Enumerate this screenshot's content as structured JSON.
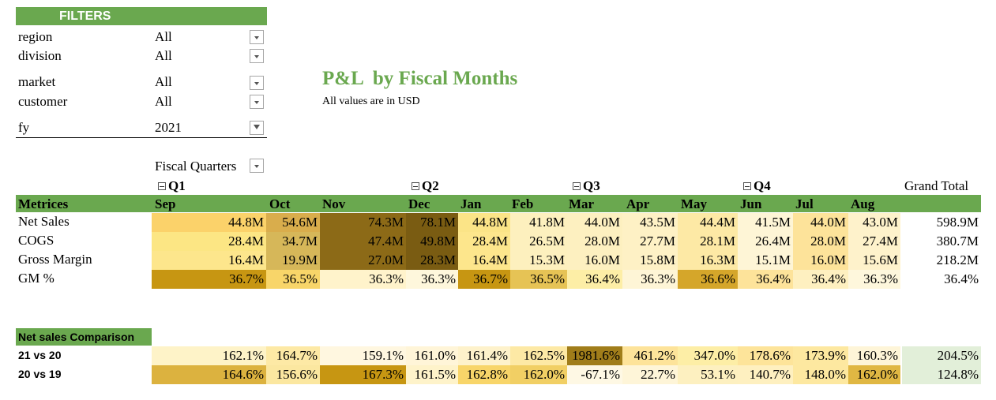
{
  "filters": {
    "header": "FILTERS",
    "items": [
      {
        "label": "region",
        "value": "All"
      },
      {
        "label": "division",
        "value": "All"
      },
      {
        "label": "market",
        "value": "All"
      },
      {
        "label": "customer",
        "value": "All"
      },
      {
        "label": "fy",
        "value": "2021"
      }
    ]
  },
  "report": {
    "title": "P&L  by Fiscal Months",
    "subtitle": "All values are in USD"
  },
  "pivot": {
    "column_field_label": "Fiscal Quarters",
    "quarters": [
      "Q1",
      "Q2",
      "Q3",
      "Q4"
    ],
    "grand_total_label": "Grand Total",
    "row_header": "Metrices",
    "months": [
      "Sep",
      "Oct",
      "Nov",
      "Dec",
      "Jan",
      "Feb",
      "Mar",
      "Apr",
      "May",
      "Jun",
      "Jul",
      "Aug"
    ],
    "rows": [
      {
        "label": "Net Sales",
        "values": [
          "44.8M",
          "54.6M",
          "74.3M",
          "78.1M",
          "44.8M",
          "41.8M",
          "44.0M",
          "43.5M",
          "44.4M",
          "41.5M",
          "44.0M",
          "43.0M"
        ],
        "total": "598.9M",
        "colors": [
          "#fbd26a",
          "#d9ad4c",
          "#8c6a17",
          "#7a5c12",
          "#fbe487",
          "#fdf0be",
          "#fdf0c0",
          "#fef1c5",
          "#fde9a5",
          "#fef5d6",
          "#fde39a",
          "#fef2cb"
        ]
      },
      {
        "label": "COGS",
        "values": [
          "28.4M",
          "34.7M",
          "47.4M",
          "49.8M",
          "28.4M",
          "26.5M",
          "28.0M",
          "27.7M",
          "28.1M",
          "26.4M",
          "28.0M",
          "27.4M"
        ],
        "total": "380.7M",
        "colors": [
          "#fce684",
          "#d6b759",
          "#8c6a17",
          "#7a5c12",
          "#fde68c",
          "#fdf0be",
          "#fdf0c0",
          "#fef1c5",
          "#fde9a5",
          "#fef5d6",
          "#fde39a",
          "#fef2cb"
        ]
      },
      {
        "label": "Gross Margin",
        "values": [
          "16.4M",
          "19.9M",
          "27.0M",
          "28.3M",
          "16.4M",
          "15.3M",
          "16.0M",
          "15.8M",
          "16.3M",
          "15.1M",
          "16.0M",
          "15.6M"
        ],
        "total": "218.2M",
        "colors": [
          "#fde68c",
          "#d6b759",
          "#8c6a17",
          "#7a5c12",
          "#fde68c",
          "#fdf0be",
          "#fdf0c0",
          "#fef1c5",
          "#fde9a5",
          "#fef5d6",
          "#fde39a",
          "#fef2cb"
        ]
      },
      {
        "label": "GM %",
        "values": [
          "36.7%",
          "36.5%",
          "36.3%",
          "36.3%",
          "36.7%",
          "36.5%",
          "36.4%",
          "36.3%",
          "36.6%",
          "36.4%",
          "36.4%",
          "36.3%"
        ],
        "total": "36.4%",
        "colors": [
          "#c79612",
          "#f8d569",
          "#fff3cb",
          "#fef7dc",
          "#c79612",
          "#e6c355",
          "#fdeea6",
          "#fef5d6",
          "#d5a62a",
          "#fde39a",
          "#fef0c0",
          "#fef7dc"
        ]
      }
    ]
  },
  "comparison": {
    "header": "Net sales Comparison",
    "rows": [
      {
        "label": "21  vs 20",
        "values": [
          "162.1%",
          "164.7%",
          "159.1%",
          "161.0%",
          "161.4%",
          "162.5%",
          "1981.6%",
          "461.2%",
          "347.0%",
          "178.6%",
          "173.9%",
          "160.3%"
        ],
        "total": "204.5%",
        "colors": [
          "#fef3c8",
          "#fde9a5",
          "#fff7e0",
          "#fff5d8",
          "#fef2cb",
          "#fde9a5",
          "#a07d1a",
          "#fde39a",
          "#fdeea6",
          "#fde49a",
          "#fde8a0",
          "#fef5d8"
        ],
        "total_color": "#e2efd9"
      },
      {
        "label": "20 vs 19",
        "values": [
          "164.6%",
          "156.6%",
          "167.3%",
          "161.5%",
          "162.8%",
          "162.0%",
          "-67.1%",
          "22.7%",
          "53.1%",
          "140.7%",
          "148.0%",
          "162.0%"
        ],
        "total": "124.8%",
        "colors": [
          "#dcb23f",
          "#fbe7a0",
          "#c79612",
          "#fef3ca",
          "#f8d569",
          "#f1cf64",
          "#fef8e4",
          "#fef5d8",
          "#fdf0c0",
          "#fef0c0",
          "#fde8a0",
          "#e0b743"
        ],
        "total_color": "#e2efd9"
      }
    ]
  },
  "colors": {
    "accent_green": "#6aa84f"
  }
}
